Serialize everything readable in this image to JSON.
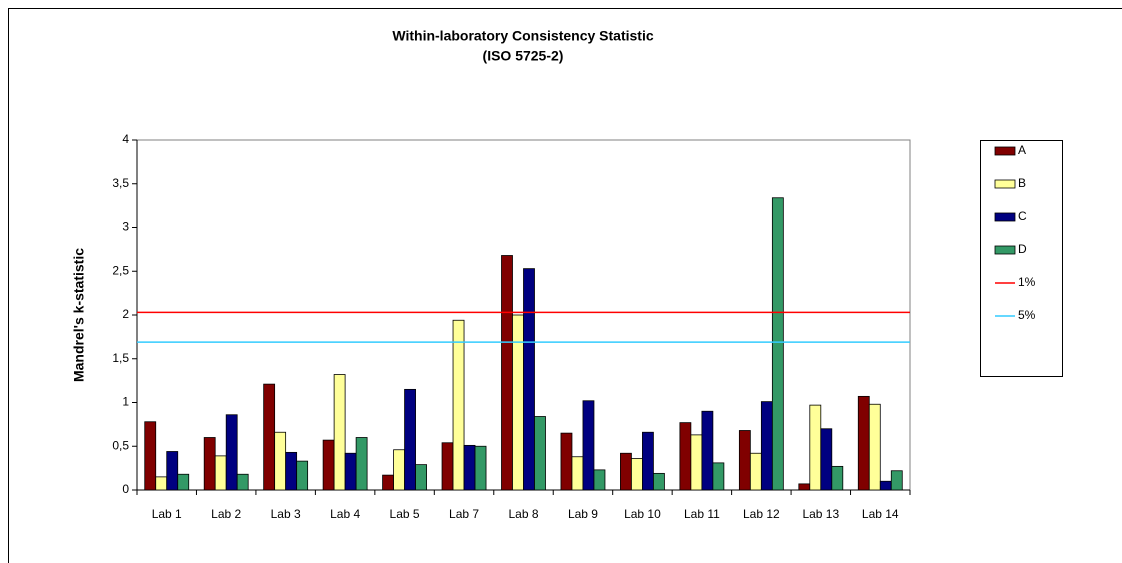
{
  "chart_data": {
    "type": "bar",
    "title": "Within-laboratory Consistency Statistic",
    "subtitle": "(ISO 5725-2)",
    "y_label": "Mandrel's k-statistic",
    "categories": [
      "Lab 1",
      "Lab 2",
      "Lab 3",
      "Lab 4",
      "Lab 5",
      "Lab 7",
      "Lab 8",
      "Lab 9",
      "Lab 10",
      "Lab 11",
      "Lab 12",
      "Lab 13",
      "Lab 14"
    ],
    "series": [
      {
        "name": "A",
        "color": "#800000",
        "values": [
          0.78,
          0.6,
          1.21,
          0.57,
          0.17,
          0.54,
          2.68,
          0.65,
          0.42,
          0.77,
          0.68,
          0.07,
          1.07
        ]
      },
      {
        "name": "B",
        "color": "#ffff99",
        "values": [
          0.15,
          0.39,
          0.66,
          1.32,
          0.46,
          1.94,
          2.0,
          0.38,
          0.36,
          0.63,
          0.42,
          0.97,
          0.98
        ]
      },
      {
        "name": "C",
        "color": "#000080",
        "values": [
          0.44,
          0.86,
          0.43,
          0.42,
          1.15,
          0.51,
          2.53,
          1.02,
          0.66,
          0.9,
          1.01,
          0.7,
          0.1
        ]
      },
      {
        "name": "D",
        "color": "#339966",
        "values": [
          0.18,
          0.18,
          0.33,
          0.6,
          0.29,
          0.5,
          0.84,
          0.23,
          0.19,
          0.31,
          3.34,
          0.27,
          0.22
        ]
      }
    ],
    "reference_lines": [
      {
        "name": "1%",
        "color": "#ff0000",
        "value": 2.03
      },
      {
        "name": "5%",
        "color": "#33ccff",
        "value": 1.69
      }
    ],
    "ylim": [
      0,
      4
    ],
    "yticks": [
      0,
      {
        "value": 0.5,
        "label": "0,5"
      },
      1,
      {
        "value": 1.5,
        "label": "1,5"
      },
      2,
      {
        "value": 2.5,
        "label": "2,5"
      },
      3,
      {
        "value": 3.5,
        "label": "3,5"
      },
      4
    ],
    "legend": "right"
  }
}
